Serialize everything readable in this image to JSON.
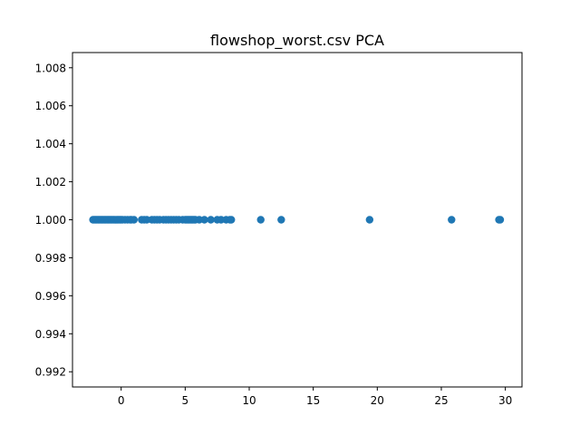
{
  "chart_data": {
    "type": "scatter",
    "title": "flowshop_worst.csv PCA",
    "xlabel": "",
    "ylabel": "",
    "xlim": [
      -3.8,
      31.3
    ],
    "ylim": [
      0.9912,
      1.0088
    ],
    "xticks": [
      0,
      5,
      10,
      15,
      20,
      25,
      30
    ],
    "yticks": [
      0.992,
      0.994,
      0.996,
      0.998,
      1.0,
      1.002,
      1.004,
      1.006,
      1.008
    ],
    "xtick_labels": [
      "0",
      "5",
      "10",
      "15",
      "20",
      "25",
      "30"
    ],
    "ytick_labels": [
      "0.992",
      "0.994",
      "0.996",
      "0.998",
      "1.000",
      "1.002",
      "1.004",
      "1.006",
      "1.008"
    ],
    "grid": false,
    "marker_color": "#1f77b4",
    "series": [
      {
        "x": [
          -2.2,
          -2.1,
          -2.0,
          -1.9,
          -1.8,
          -1.7,
          -1.6,
          -1.5,
          -1.4,
          -1.3,
          -1.2,
          -1.1,
          -1.0,
          -0.9,
          -0.8,
          -0.7,
          -0.6,
          -0.5,
          -0.4,
          -0.3,
          -0.2,
          -0.1,
          0.0,
          0.1,
          0.3,
          0.5,
          0.7,
          0.8,
          1.0,
          1.6,
          1.8,
          2.0,
          2.4,
          2.6,
          2.8,
          3.0,
          3.3,
          3.5,
          3.7,
          3.9,
          4.1,
          4.3,
          4.5,
          4.8,
          5.0,
          5.1,
          5.2,
          5.3,
          5.4,
          5.5,
          5.6,
          5.7,
          5.8,
          6.1,
          6.5,
          7.0,
          7.5,
          7.8,
          8.2,
          8.5,
          8.6,
          10.9,
          12.5,
          19.4,
          25.8,
          29.5,
          29.6
        ],
        "y": [
          1.0,
          1.0,
          1.0,
          1.0,
          1.0,
          1.0,
          1.0,
          1.0,
          1.0,
          1.0,
          1.0,
          1.0,
          1.0,
          1.0,
          1.0,
          1.0,
          1.0,
          1.0,
          1.0,
          1.0,
          1.0,
          1.0,
          1.0,
          1.0,
          1.0,
          1.0,
          1.0,
          1.0,
          1.0,
          1.0,
          1.0,
          1.0,
          1.0,
          1.0,
          1.0,
          1.0,
          1.0,
          1.0,
          1.0,
          1.0,
          1.0,
          1.0,
          1.0,
          1.0,
          1.0,
          1.0,
          1.0,
          1.0,
          1.0,
          1.0,
          1.0,
          1.0,
          1.0,
          1.0,
          1.0,
          1.0,
          1.0,
          1.0,
          1.0,
          1.0,
          1.0,
          1.0,
          1.0,
          1.0,
          1.0,
          1.0,
          1.0
        ]
      }
    ]
  }
}
